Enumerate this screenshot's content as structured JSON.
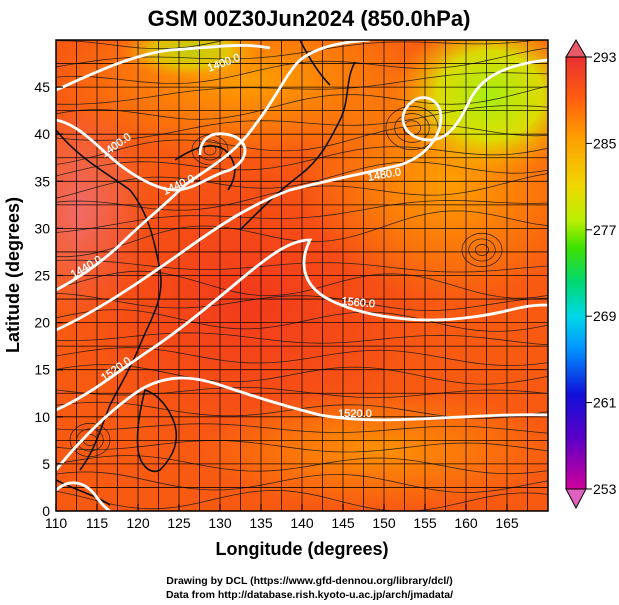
{
  "title": "GSM 00Z30Jun2024 (850.0hPa)",
  "x_axis": {
    "label": "Longitude (degrees)",
    "range": [
      110,
      170
    ],
    "ticks": [
      "110",
      "115",
      "120",
      "125",
      "130",
      "135",
      "140",
      "145",
      "150",
      "155",
      "160",
      "165"
    ]
  },
  "y_axis": {
    "label": "Latitude  (degrees)",
    "range": [
      0,
      50
    ],
    "ticks": [
      "0",
      "5",
      "10",
      "15",
      "20",
      "25",
      "30",
      "35",
      "40",
      "45"
    ]
  },
  "colorbar": {
    "range": [
      253,
      293
    ],
    "ticks": [
      "293",
      "285",
      "277",
      "269",
      "261",
      "253"
    ],
    "colors": [
      "#d0009c",
      "#5a00c8",
      "#1010d8",
      "#0090ff",
      "#00d8e8",
      "#00d870",
      "#40e000",
      "#b8f000",
      "#f0d800",
      "#ff9a00",
      "#ff5a10",
      "#e83030"
    ]
  },
  "contours": [
    {
      "label": "1400.0"
    },
    {
      "label": "1400.0"
    },
    {
      "label": "1440.0"
    },
    {
      "label": "1440.0"
    },
    {
      "label": "1480.0"
    },
    {
      "label": "1520.0"
    },
    {
      "label": "1520.0"
    },
    {
      "label": "1560.0"
    }
  ],
  "credits": {
    "line1": "Drawing by DCL (https://www.gfd-dennou.org/library/dcl/)",
    "line2": "Data from http://database.rish.kyoto-u.ac.jp/arch/jmadata/"
  }
}
